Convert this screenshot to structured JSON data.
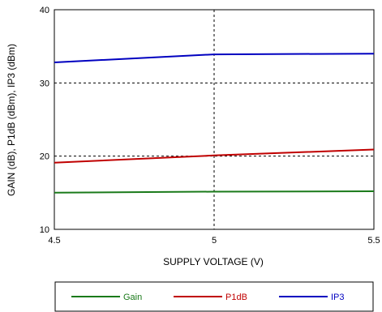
{
  "chart_data": {
    "type": "line",
    "xlabel": "SUPPLY VOLTAGE (V)",
    "ylabel": "GAIN (dB), P1dB (dBm), IP3 (dBm)",
    "xlim": [
      4.5,
      5.5
    ],
    "ylim": [
      10,
      40
    ],
    "x_ticks": [
      "4.5",
      "5",
      "5.5"
    ],
    "y_ticks": [
      "10",
      "20",
      "30",
      "40"
    ],
    "grid": "dashed at x=5, y=20, y=30",
    "legend_position": "bottom",
    "series": [
      {
        "name": "Gain",
        "color": "#1a7a1a",
        "x": [
          4.5,
          5.0,
          5.5
        ],
        "y": [
          15.0,
          15.15,
          15.2
        ]
      },
      {
        "name": "P1dB",
        "color": "#c00000",
        "x": [
          4.5,
          5.0,
          5.5
        ],
        "y": [
          19.1,
          20.1,
          20.9
        ]
      },
      {
        "name": "IP3",
        "color": "#0000c0",
        "x": [
          4.5,
          5.0,
          5.5
        ],
        "y": [
          32.8,
          33.9,
          34.0
        ]
      }
    ]
  }
}
